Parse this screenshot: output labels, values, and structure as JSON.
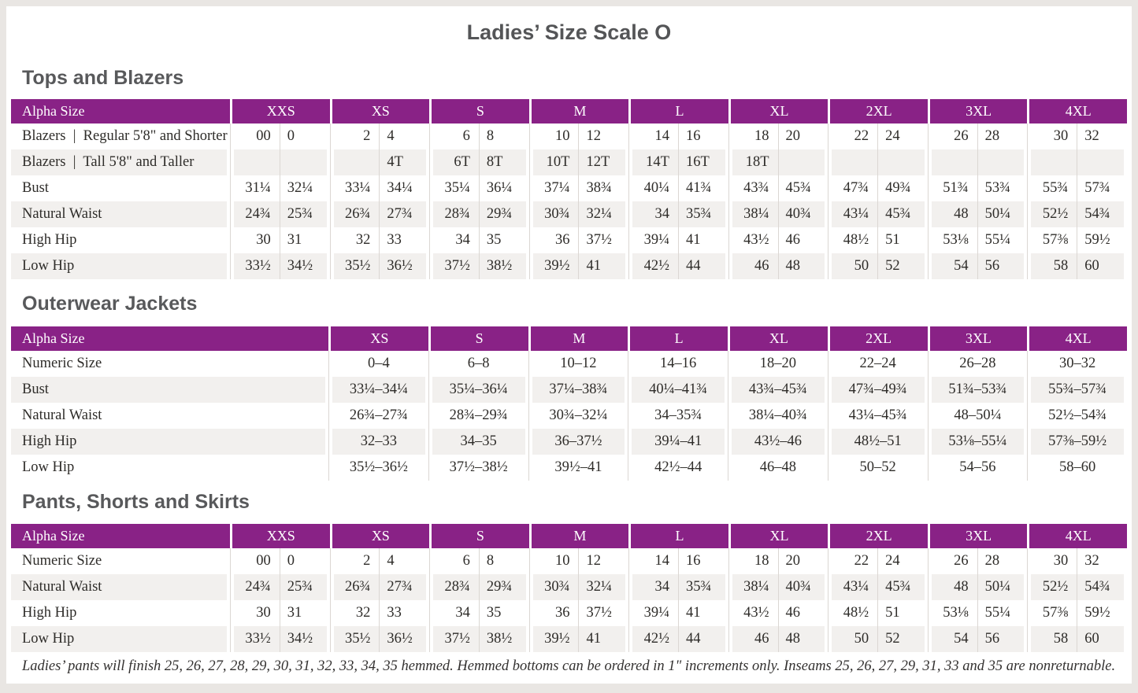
{
  "page": {
    "title": "Ladies’ Size Scale O",
    "footnote": "Ladies’ pants will finish 25, 26, 27, 28, 29, 30, 31, 32, 33, 34, 35 hemmed. Hemmed bottoms can be ordered in 1\" increments only. Inseams 25, 26, 27, 29, 31, 33 and 35 are nonreturnable.",
    "colors": {
      "header_purple": "#892286",
      "stripe_gray": "#F2F0EE",
      "divider_line": "#DBD7D3",
      "heading_text": "#58595B",
      "body_text": "#2E2C29"
    }
  },
  "tables": [
    {
      "id": "tops-and-blazers",
      "section_title": "Tops and Blazers",
      "layout": "paired",
      "header_label": "Alpha Size",
      "sizes": [
        "XXS",
        "XS",
        "S",
        "M",
        "L",
        "XL",
        "2XL",
        "3XL",
        "4XL"
      ],
      "rows": [
        {
          "label": "Blazers  |  Regular 5'8\" and Shorter",
          "values": [
            "00",
            "0",
            "2",
            "4",
            "6",
            "8",
            "10",
            "12",
            "14",
            "16",
            "18",
            "20",
            "22",
            "24",
            "26",
            "28",
            "30",
            "32"
          ]
        },
        {
          "label": "Blazers  |  Tall 5'8\" and Taller",
          "values": [
            "",
            "",
            "",
            "4T",
            "6T",
            "8T",
            "10T",
            "12T",
            "14T",
            "16T",
            "18T",
            "",
            "",
            "",
            "",
            "",
            "",
            ""
          ]
        },
        {
          "label": "Bust",
          "values": [
            "31¼",
            "32¼",
            "33¼",
            "34¼",
            "35¼",
            "36¼",
            "37¼",
            "38¾",
            "40¼",
            "41¾",
            "43¾",
            "45¾",
            "47¾",
            "49¾",
            "51¾",
            "53¾",
            "55¾",
            "57¾"
          ]
        },
        {
          "label": "Natural Waist",
          "values": [
            "24¾",
            "25¾",
            "26¾",
            "27¾",
            "28¾",
            "29¾",
            "30¾",
            "32¼",
            "34",
            "35¾",
            "38¼",
            "40¾",
            "43¼",
            "45¾",
            "48",
            "50¼",
            "52½",
            "54¾"
          ]
        },
        {
          "label": "High Hip",
          "values": [
            "30",
            "31",
            "32",
            "33",
            "34",
            "35",
            "36",
            "37½",
            "39¼",
            "41",
            "43½",
            "46",
            "48½",
            "51",
            "53⅛",
            "55¼",
            "57⅜",
            "59½"
          ]
        },
        {
          "label": "Low Hip",
          "values": [
            "33½",
            "34½",
            "35½",
            "36½",
            "37½",
            "38½",
            "39½",
            "41",
            "42½",
            "44",
            "46",
            "48",
            "50",
            "52",
            "54",
            "56",
            "58",
            "60"
          ]
        }
      ]
    },
    {
      "id": "outerwear-jackets",
      "section_title": "Outerwear Jackets",
      "layout": "merged",
      "header_label": "Alpha Size",
      "sizes": [
        "XS",
        "S",
        "M",
        "L",
        "XL",
        "2XL",
        "3XL",
        "4XL"
      ],
      "rows": [
        {
          "label": "Numeric Size",
          "values": [
            "0–4",
            "6–8",
            "10–12",
            "14–16",
            "18–20",
            "22–24",
            "26–28",
            "30–32"
          ]
        },
        {
          "label": "Bust",
          "values": [
            "33¼–34¼",
            "35¼–36¼",
            "37¼–38¾",
            "40¼–41¾",
            "43¾–45¾",
            "47¾–49¾",
            "51¾–53¾",
            "55¾–57¾"
          ]
        },
        {
          "label": "Natural Waist",
          "values": [
            "26¾–27¾",
            "28¾–29¾",
            "30¾–32¼",
            "34–35¾",
            "38¼–40¾",
            "43¼–45¾",
            "48–50¼",
            "52½–54¾"
          ]
        },
        {
          "label": "High Hip",
          "values": [
            "32–33",
            "34–35",
            "36–37½",
            "39¼–41",
            "43½–46",
            "48½–51",
            "53⅛–55¼",
            "57⅜–59½"
          ]
        },
        {
          "label": "Low Hip",
          "values": [
            "35½–36½",
            "37½–38½",
            "39½–41",
            "42½–44",
            "46–48",
            "50–52",
            "54–56",
            "58–60"
          ]
        }
      ]
    },
    {
      "id": "pants-shorts-skirts",
      "section_title": "Pants, Shorts and Skirts",
      "layout": "paired",
      "header_label": "Alpha Size",
      "sizes": [
        "XXS",
        "XS",
        "S",
        "M",
        "L",
        "XL",
        "2XL",
        "3XL",
        "4XL"
      ],
      "rows": [
        {
          "label": "Numeric Size",
          "values": [
            "00",
            "0",
            "2",
            "4",
            "6",
            "8",
            "10",
            "12",
            "14",
            "16",
            "18",
            "20",
            "22",
            "24",
            "26",
            "28",
            "30",
            "32"
          ]
        },
        {
          "label": "Natural Waist",
          "values": [
            "24¾",
            "25¾",
            "26¾",
            "27¾",
            "28¾",
            "29¾",
            "30¾",
            "32¼",
            "34",
            "35¾",
            "38¼",
            "40¾",
            "43¼",
            "45¾",
            "48",
            "50¼",
            "52½",
            "54¾"
          ]
        },
        {
          "label": "High Hip",
          "values": [
            "30",
            "31",
            "32",
            "33",
            "34",
            "35",
            "36",
            "37½",
            "39¼",
            "41",
            "43½",
            "46",
            "48½",
            "51",
            "53⅛",
            "55¼",
            "57⅜",
            "59½"
          ]
        },
        {
          "label": "Low Hip",
          "values": [
            "33½",
            "34½",
            "35½",
            "36½",
            "37½",
            "38½",
            "39½",
            "41",
            "42½",
            "44",
            "46",
            "48",
            "50",
            "52",
            "54",
            "56",
            "58",
            "60"
          ]
        }
      ]
    }
  ]
}
